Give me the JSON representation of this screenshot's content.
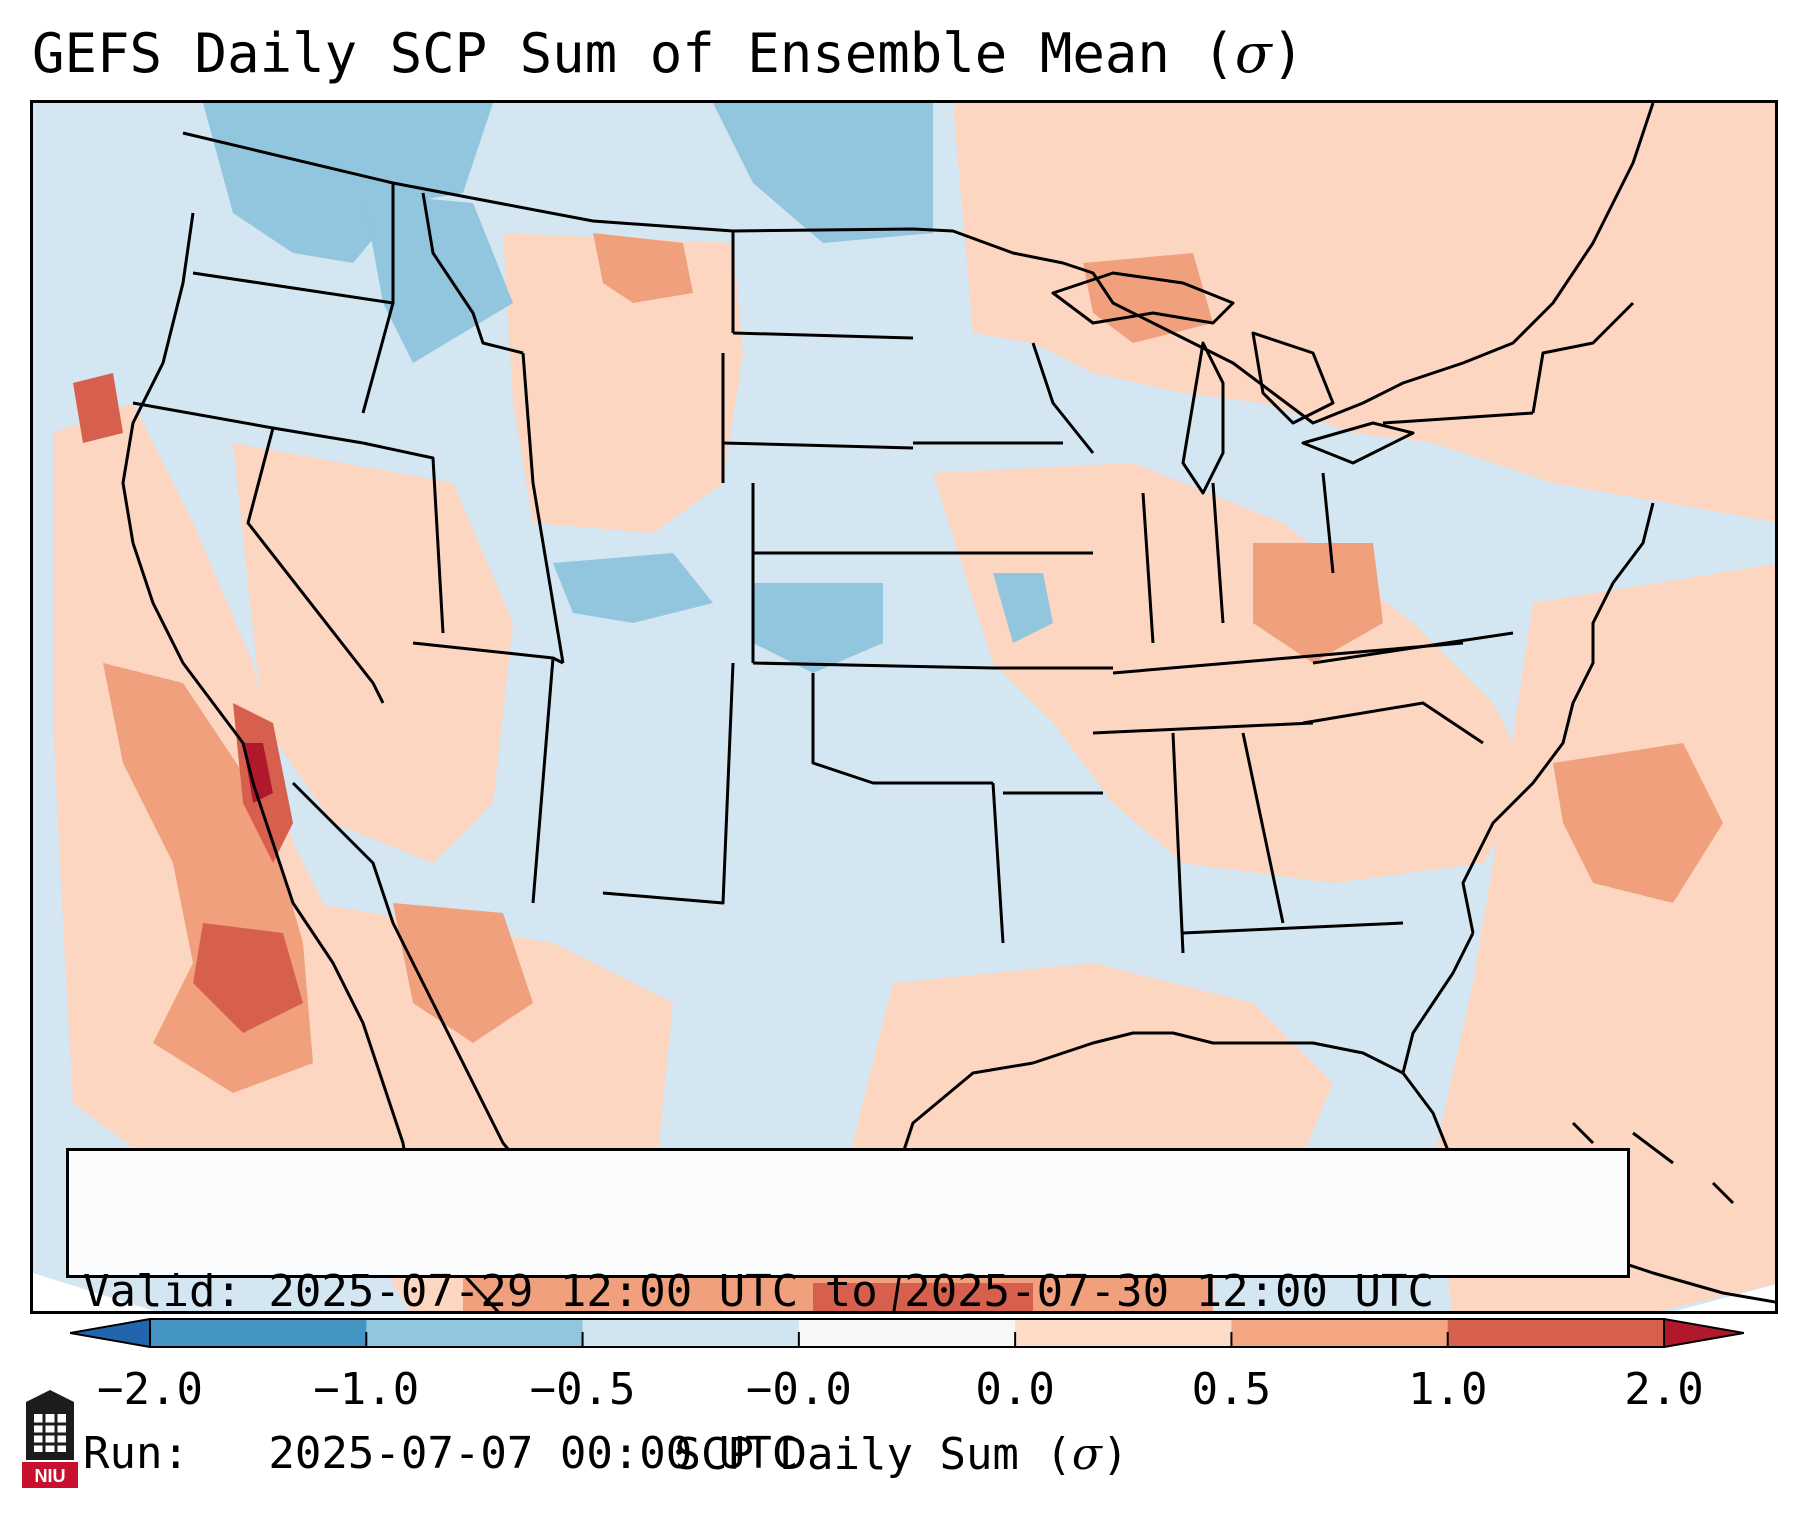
{
  "title": {
    "text": "GEFS Daily SCP Sum of Ensemble Mean (",
    "symbol": "σ",
    "close": ")"
  },
  "info": {
    "valid_line": "Valid: 2025-07-29 12:00 UTC to 2025-07-30 12:00 UTC",
    "run_line": "Run:   2025-07-07 00:00 UTC"
  },
  "colorbar": {
    "label_text": "SCP Daily Sum (",
    "label_symbol": "σ",
    "label_close": ")",
    "ticks": [
      "−2.0",
      "−1.0",
      "−0.5",
      "−0.0",
      "0.0",
      "0.5",
      "1.0",
      "2.0"
    ],
    "bins": [
      {
        "from": -2.0,
        "to": -1.0,
        "color": "#4393c3"
      },
      {
        "from": -1.0,
        "to": -0.5,
        "color": "#92c5de"
      },
      {
        "from": -0.5,
        "to": -0.0,
        "color": "#d1e5f0"
      },
      {
        "from": -0.0,
        "to": 0.0,
        "color": "#f7f7f7"
      },
      {
        "from": 0.0,
        "to": 0.5,
        "color": "#fddbc7"
      },
      {
        "from": 0.5,
        "to": 1.0,
        "color": "#f4a582"
      },
      {
        "from": 1.0,
        "to": 2.0,
        "color": "#d6604d"
      }
    ],
    "under_color": "#2166ac",
    "over_color": "#b2182b"
  },
  "logo": {
    "text": "NIU"
  },
  "colors": {
    "neg_small": "#d3e6f1",
    "neg_mid": "#92c5de",
    "pos_small": "#fcd6c1",
    "pos_mid": "#f1a07e",
    "pos_high": "#d6604d",
    "pos_max": "#b2182b"
  }
}
